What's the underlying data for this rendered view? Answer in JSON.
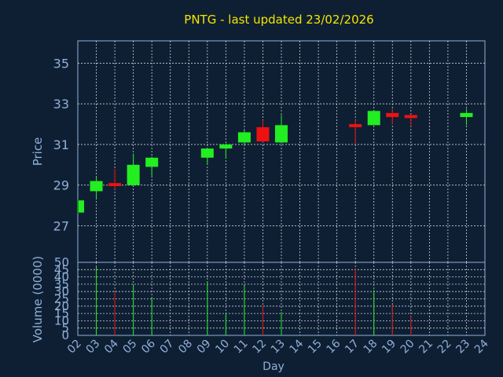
{
  "chart_data": [
    {
      "type": "candlestick",
      "title": "PNTG - last updated 23/02/2026",
      "ylabel": "Price",
      "ylim": [
        25.2,
        36.1
      ],
      "yticks": [
        27,
        29,
        31,
        33,
        35
      ],
      "grid": true,
      "colors": {
        "up": "#22ee22",
        "down": "#ee1111",
        "grid": "#c8d2dc",
        "axis": "#8fb0d8",
        "title": "#f2e600",
        "background": "#0f1f33"
      },
      "candles": [
        {
          "day": "02",
          "open": 27.65,
          "close": 28.25,
          "high": 28.3,
          "low": 27.6
        },
        {
          "day": "03",
          "open": 28.7,
          "close": 29.2,
          "high": 29.4,
          "low": 28.35
        },
        {
          "day": "04",
          "open": 29.1,
          "close": 28.95,
          "high": 29.8,
          "low": 28.8
        },
        {
          "day": "05",
          "open": 29.0,
          "close": 30.0,
          "high": 30.55,
          "low": 29.0
        },
        {
          "day": "06",
          "open": 29.9,
          "close": 30.35,
          "high": 30.4,
          "low": 29.45
        },
        {
          "day": "09",
          "open": 30.35,
          "close": 30.8,
          "high": 30.8,
          "low": 30.0
        },
        {
          "day": "10",
          "open": 30.8,
          "close": 31.0,
          "high": 31.05,
          "low": 30.3
        },
        {
          "day": "11",
          "open": 31.1,
          "close": 31.6,
          "high": 31.7,
          "low": 30.95
        },
        {
          "day": "12",
          "open": 31.85,
          "close": 31.15,
          "high": 32.2,
          "low": 31.1
        },
        {
          "day": "13",
          "open": 31.1,
          "close": 31.95,
          "high": 32.45,
          "low": 31.05
        },
        {
          "day": "17",
          "open": 32.0,
          "close": 31.85,
          "high": 32.2,
          "low": 31.0
        },
        {
          "day": "18",
          "open": 31.95,
          "close": 32.65,
          "high": 32.7,
          "low": 31.95
        },
        {
          "day": "19",
          "open": 32.55,
          "close": 32.35,
          "high": 32.75,
          "low": 32.0
        },
        {
          "day": "20",
          "open": 32.45,
          "close": 32.3,
          "high": 32.45,
          "low": 31.9
        },
        {
          "day": "23",
          "open": 32.35,
          "close": 32.55,
          "high": 32.75,
          "low": 31.95
        }
      ]
    },
    {
      "type": "bar",
      "ylabel": "Volume (0000)",
      "xlabel": "Day",
      "ylim": [
        0,
        50
      ],
      "yticks": [
        0,
        5,
        10,
        15,
        20,
        25,
        30,
        35,
        40,
        45,
        50
      ],
      "categories": [
        "02",
        "03",
        "04",
        "05",
        "06",
        "07",
        "08",
        "09",
        "10",
        "11",
        "12",
        "13",
        "14",
        "15",
        "16",
        "17",
        "18",
        "19",
        "20",
        "21",
        "22",
        "23",
        "24"
      ],
      "volumes": [
        {
          "day": "03",
          "value": 47,
          "direction": "up"
        },
        {
          "day": "04",
          "value": 30,
          "direction": "down"
        },
        {
          "day": "05",
          "value": 35,
          "direction": "up"
        },
        {
          "day": "06",
          "value": 26,
          "direction": "up"
        },
        {
          "day": "09",
          "value": 37,
          "direction": "up"
        },
        {
          "day": "10",
          "value": 15,
          "direction": "up"
        },
        {
          "day": "11",
          "value": 34,
          "direction": "up"
        },
        {
          "day": "12",
          "value": 20,
          "direction": "down"
        },
        {
          "day": "13",
          "value": 16,
          "direction": "up"
        },
        {
          "day": "17",
          "value": 46,
          "direction": "down"
        },
        {
          "day": "18",
          "value": 31,
          "direction": "up"
        },
        {
          "day": "19",
          "value": 21,
          "direction": "down"
        },
        {
          "day": "20",
          "value": 13,
          "direction": "down"
        }
      ]
    }
  ]
}
